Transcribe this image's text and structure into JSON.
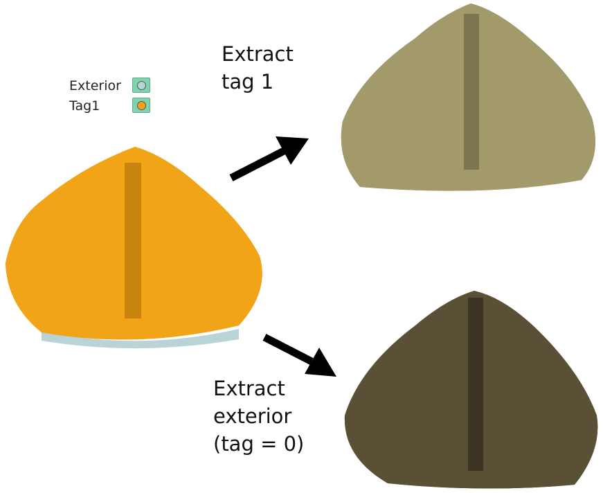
{
  "legend": {
    "items": [
      {
        "label": "Exterior",
        "swatch_color": "#b6d4d6"
      },
      {
        "label": "Tag1",
        "swatch_color": "#f3a21a"
      }
    ]
  },
  "captions": {
    "top": "Extract\ntag 1",
    "bottom": "Extract\nexterior\n(tag = 0)"
  },
  "colors": {
    "source_mesh": "#f1a417",
    "source_base": "#b9d3d6",
    "tag1_mesh": "#a39a6b",
    "exterior_mesh": "#5a5035",
    "arrow": "#000000"
  },
  "icons": {
    "arrow_top": "arrow-up-right-icon",
    "arrow_bottom": "arrow-down-right-icon"
  }
}
